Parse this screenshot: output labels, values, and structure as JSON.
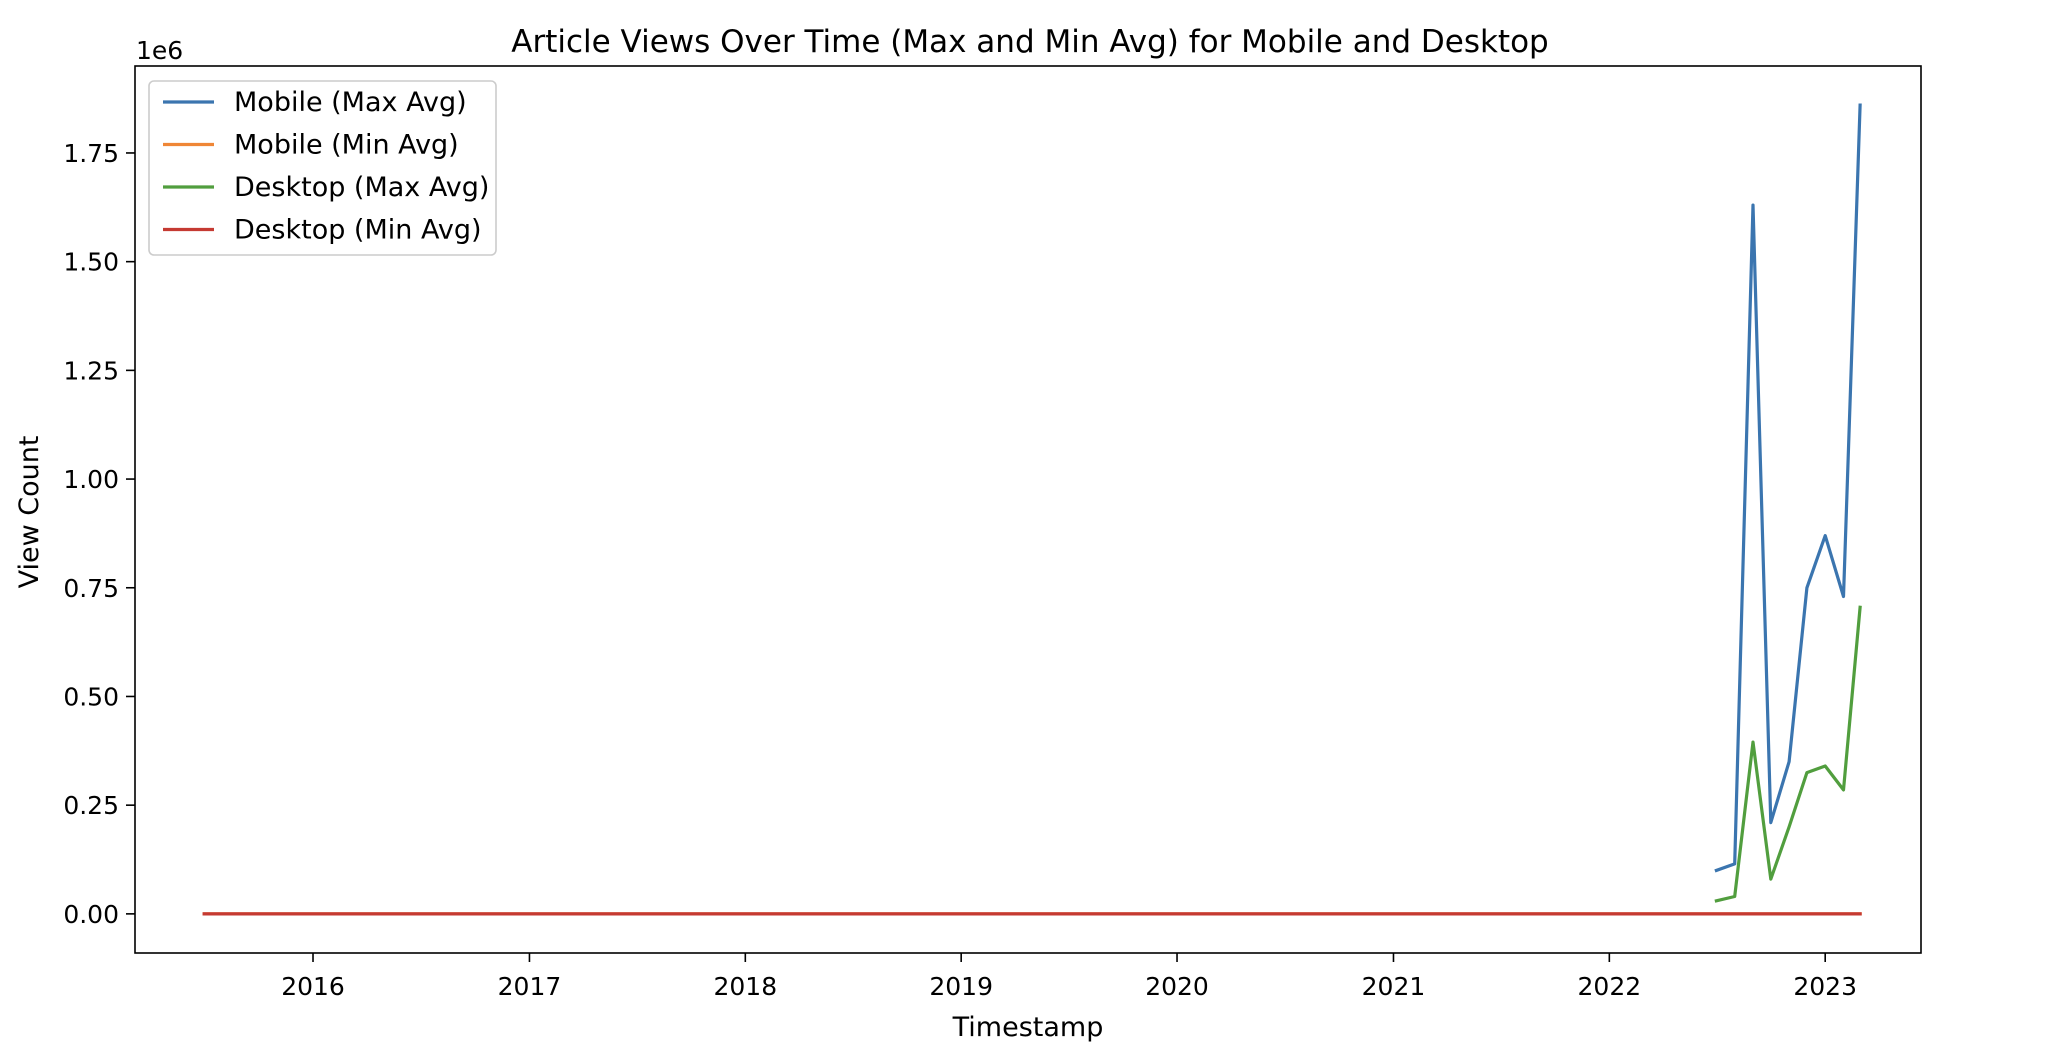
{
  "chart_data": {
    "type": "line",
    "title": "Article Views Over Time (Max and Min Avg) for Mobile and Desktop",
    "xlabel": "Timestamp",
    "ylabel": "View Count",
    "y_offset_text": "1e6",
    "x_ticks": [
      "2016",
      "2017",
      "2018",
      "2019",
      "2020",
      "2021",
      "2022",
      "2023"
    ],
    "y_ticks": [
      "0.00",
      "0.25",
      "0.50",
      "0.75",
      "1.00",
      "1.25",
      "1.50",
      "1.75"
    ],
    "xlim": [
      "2015-03-06",
      "2023-06-12"
    ],
    "ylim": [
      -90000,
      1950000
    ],
    "grid": false,
    "legend_position": "upper left",
    "series": [
      {
        "name": "Mobile (Max Avg)",
        "color": "#3b75af",
        "x": [
          "2022-07-01",
          "2022-08-01",
          "2022-09-01",
          "2022-10-01",
          "2022-11-01",
          "2022-12-01",
          "2023-01-01",
          "2023-02-01",
          "2023-03-01"
        ],
        "y": [
          100000,
          115000,
          1630000,
          210000,
          350000,
          750000,
          870000,
          730000,
          1860000
        ]
      },
      {
        "name": "Mobile (Min Avg)",
        "color": "#ef8636",
        "x": [
          "2015-07-01",
          "2023-03-01"
        ],
        "y": [
          0,
          0
        ]
      },
      {
        "name": "Desktop (Max Avg)",
        "color": "#519e3e",
        "x": [
          "2022-07-01",
          "2022-08-01",
          "2022-09-01",
          "2022-10-01",
          "2022-11-01",
          "2022-12-01",
          "2023-01-01",
          "2023-02-01",
          "2023-03-01"
        ],
        "y": [
          30000,
          40000,
          395000,
          80000,
          200000,
          325000,
          340000,
          285000,
          705000
        ]
      },
      {
        "name": "Desktop (Min Avg)",
        "color": "#c53a32",
        "x": [
          "2015-07-01",
          "2023-03-01"
        ],
        "y": [
          0,
          0
        ]
      }
    ]
  }
}
